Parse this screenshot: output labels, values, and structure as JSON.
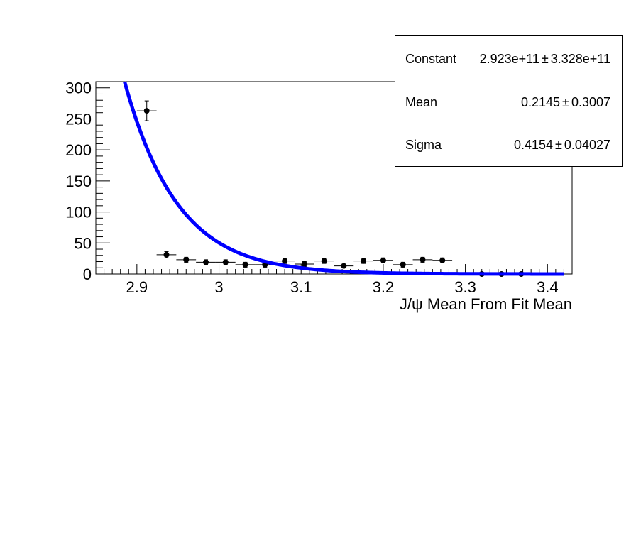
{
  "chart_data": {
    "type": "scatter",
    "xlabel": "J/ψ Mean From Fit Mean",
    "ylabel": "",
    "title": "",
    "xlim": [
      2.85,
      3.43
    ],
    "ylim": [
      0,
      310
    ],
    "x_ticks": [
      "2.9",
      "3",
      "3.1",
      "3.2",
      "3.3",
      "3.4"
    ],
    "y_ticks": [
      "0",
      "50",
      "100",
      "150",
      "200",
      "250",
      "300"
    ],
    "points": {
      "x": [
        2.912,
        2.936,
        2.96,
        2.984,
        3.008,
        3.032,
        3.056,
        3.08,
        3.104,
        3.128,
        3.152,
        3.176,
        3.2,
        3.224,
        3.248,
        3.272,
        3.32,
        3.344,
        3.368
      ],
      "y": [
        263,
        31,
        23,
        19,
        19,
        15,
        15,
        21,
        16,
        21,
        13,
        21,
        22,
        15,
        23,
        22,
        0,
        0,
        0
      ],
      "x_err": 0.012,
      "y_err": [
        16,
        5,
        4,
        4,
        4,
        4,
        4,
        4,
        4,
        4,
        3,
        4,
        4,
        4,
        4,
        4,
        0,
        0,
        0
      ]
    },
    "fit": {
      "function": "gaus",
      "constant": 292300000000.0,
      "mean": 0.2145,
      "sigma": 0.4154,
      "x_range": [
        2.85,
        3.42
      ],
      "color": "#0000ff"
    },
    "marker_color": "#000000",
    "grid": false,
    "stats": [
      {
        "name": "Constant",
        "value": "2.923e+11",
        "error": "3.328e+11"
      },
      {
        "name": "Mean",
        "value": "0.2145",
        "error": "0.3007"
      },
      {
        "name": "Sigma",
        "value": "0.4154",
        "error": "0.04027"
      }
    ],
    "pm_symbol": "±"
  }
}
